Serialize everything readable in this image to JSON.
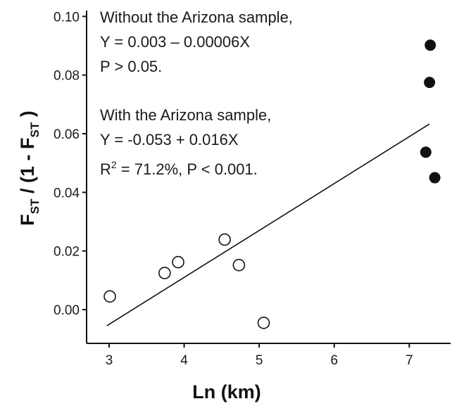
{
  "chart_data": {
    "type": "scatter",
    "title": "",
    "xlabel": "Ln (km)",
    "ylabel": {
      "prefix": "F",
      "sub1": "ST",
      "middle": " / (1 - F",
      "sub2": "ST",
      "suffix": " )"
    },
    "xlim": [
      2.7,
      7.55
    ],
    "ylim": [
      -0.0115,
      0.102
    ],
    "xticks": [
      3,
      4,
      5,
      6,
      7
    ],
    "xtick_labels": [
      "3",
      "4",
      "5",
      "6",
      "7"
    ],
    "yticks": [
      0.0,
      0.02,
      0.04,
      0.06,
      0.08,
      0.1
    ],
    "ytick_labels": [
      "0.00",
      "0.02",
      "0.04",
      "0.06",
      "0.08",
      "0.10"
    ],
    "grid": false,
    "series": [
      {
        "marker": "open-circle",
        "color": "#111111",
        "points": [
          {
            "x": 3.01,
            "y": 0.0045
          },
          {
            "x": 3.74,
            "y": 0.0125
          },
          {
            "x": 3.92,
            "y": 0.0162
          },
          {
            "x": 4.54,
            "y": 0.0239
          },
          {
            "x": 4.73,
            "y": 0.0152
          },
          {
            "x": 5.06,
            "y": -0.0045
          }
        ]
      },
      {
        "marker": "filled-circle",
        "color": "#111111",
        "points": [
          {
            "x": 7.28,
            "y": 0.0902
          },
          {
            "x": 7.27,
            "y": 0.0775
          },
          {
            "x": 7.22,
            "y": 0.0537
          },
          {
            "x": 7.34,
            "y": 0.045
          }
        ]
      }
    ],
    "regression_line": {
      "intercept": -0.053,
      "slope": 0.016,
      "x_range": [
        2.97,
        7.27
      ]
    },
    "annotations": {
      "block1": {
        "line1": "Without the Arizona sample,",
        "line2": "Y = 0.003 – 0.00006X",
        "line3": "P > 0.05."
      },
      "block2": {
        "line1": "With the Arizona sample,",
        "line2": "Y = -0.053 + 0.016X",
        "line3_R": "R",
        "line3_sup": "2",
        "line3_rest": " = 71.2%, P < 0.001."
      }
    }
  }
}
